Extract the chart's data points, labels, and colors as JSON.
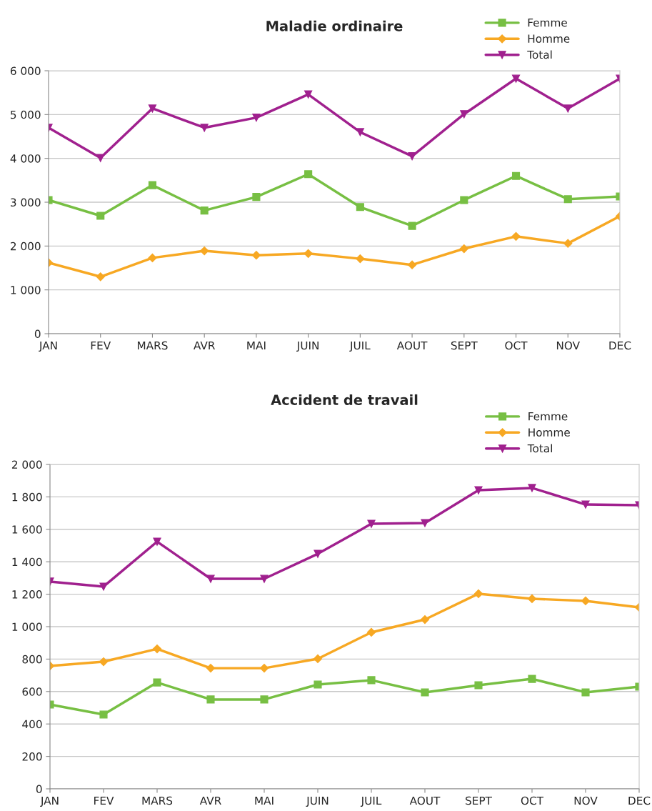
{
  "chart_data": [
    {
      "type": "line",
      "title": "Maladie ordinaire",
      "categories": [
        "JAN",
        "FEV",
        "MARS",
        "AVR",
        "MAI",
        "JUIN",
        "JUIL",
        "AOUT",
        "SEPT",
        "OCT",
        "NOV",
        "DEC"
      ],
      "series": [
        {
          "name": "Femme",
          "color": "#77bf43",
          "marker": "square",
          "values": [
            3050,
            2690,
            3390,
            2810,
            3120,
            3640,
            2890,
            2460,
            3050,
            3600,
            3070,
            3130
          ]
        },
        {
          "name": "Homme",
          "color": "#f7a823",
          "marker": "diamond",
          "values": [
            1620,
            1300,
            1730,
            1890,
            1790,
            1830,
            1710,
            1570,
            1940,
            2220,
            2060,
            2680
          ]
        },
        {
          "name": "Total",
          "color": "#a0208e",
          "marker": "triangle",
          "values": [
            4700,
            4010,
            5140,
            4700,
            4930,
            5460,
            4600,
            4050,
            5010,
            5820,
            5140,
            5820
          ]
        }
      ],
      "ylim": [
        0,
        6000
      ],
      "yticks": [
        {
          "value": 0,
          "label": "0"
        },
        {
          "value": 1000,
          "label": "1 000"
        },
        {
          "value": 2000,
          "label": "2 000"
        },
        {
          "value": 3000,
          "label": "3 000"
        },
        {
          "value": 4000,
          "label": "4 000"
        },
        {
          "value": 5000,
          "label": "5 000"
        },
        {
          "value": 6000,
          "label": "6 000"
        }
      ],
      "grid": "y",
      "legend": "top right",
      "line_style": "solid"
    },
    {
      "type": "line",
      "title": "Accident de travail",
      "categories": [
        "JAN",
        "FEV",
        "MARS",
        "AVR",
        "MAI",
        "JUIN",
        "JUIL",
        "AOUT",
        "SEPT",
        "OCT",
        "NOV",
        "DEC"
      ],
      "series": [
        {
          "name": "Femme",
          "color": "#77bf43",
          "marker": "square",
          "values": [
            520,
            458,
            656,
            551,
            551,
            643,
            670,
            595,
            639,
            678,
            595,
            630
          ]
        },
        {
          "name": "Homme",
          "color": "#f7a823",
          "marker": "diamond",
          "values": [
            758,
            784,
            863,
            744,
            744,
            802,
            965,
            1044,
            1203,
            1172,
            1159,
            1119
          ]
        },
        {
          "name": "Total",
          "color": "#a0208e",
          "marker": "triangle",
          "values": [
            1278,
            1247,
            1524,
            1295,
            1295,
            1449,
            1634,
            1639,
            1841,
            1855,
            1753,
            1749
          ]
        }
      ],
      "ylim": [
        0,
        2000
      ],
      "yticks": [
        {
          "value": 0,
          "label": "0"
        },
        {
          "value": 200,
          "label": "200"
        },
        {
          "value": 400,
          "label": "400"
        },
        {
          "value": 600,
          "label": "600"
        },
        {
          "value": 800,
          "label": "800"
        },
        {
          "value": 1000,
          "label": "1 000"
        },
        {
          "value": 1200,
          "label": "1 200"
        },
        {
          "value": 1400,
          "label": "1 400"
        },
        {
          "value": 1600,
          "label": "1 600"
        },
        {
          "value": 1800,
          "label": "1 800"
        },
        {
          "value": 2000,
          "label": "2 000"
        }
      ],
      "grid": "y",
      "legend": "top right",
      "line_style": "solid"
    }
  ]
}
